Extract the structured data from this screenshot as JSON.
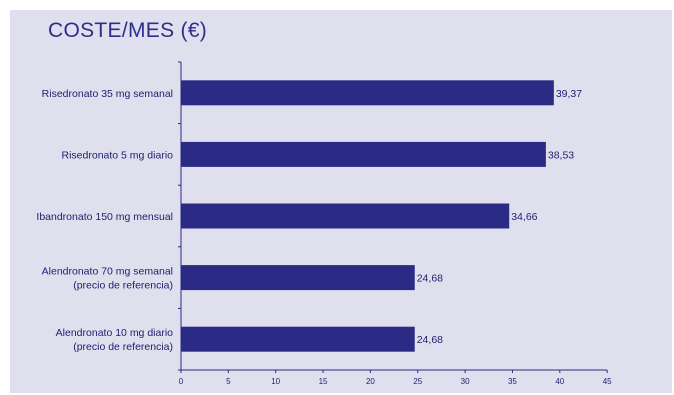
{
  "colors": {
    "panel_background": "#e0dfee",
    "bar": "#2b2b86",
    "text": "#1e1e6e",
    "title": "#2e2e8c",
    "axis": "#2b2b86"
  },
  "chart_data": {
    "type": "bar",
    "orientation": "horizontal",
    "title": "COSTE/MES (€)",
    "xlabel": "",
    "ylabel": "",
    "categories": [
      [
        "Risedronato 35 mg semanal"
      ],
      [
        "Risedronato 5 mg diario"
      ],
      [
        "Ibandronato 150 mg mensual"
      ],
      [
        "Alendronato 70 mg semanal",
        "(precio de referencia)"
      ],
      [
        "Alendronato 10 mg diario",
        "(precio de referencia)"
      ]
    ],
    "values": [
      39.37,
      38.53,
      34.66,
      24.68,
      24.68
    ],
    "value_labels": [
      "39,37",
      "38,53",
      "34,66",
      "24,68",
      "24,68"
    ],
    "xlim": [
      0,
      45
    ],
    "xticks": [
      0,
      5,
      10,
      15,
      20,
      25,
      30,
      35,
      40,
      45
    ],
    "xtick_labels": [
      "0",
      "5",
      "10",
      "15",
      "20",
      "25",
      "30",
      "35",
      "40",
      "45"
    ],
    "grid": false,
    "legend": "none"
  }
}
